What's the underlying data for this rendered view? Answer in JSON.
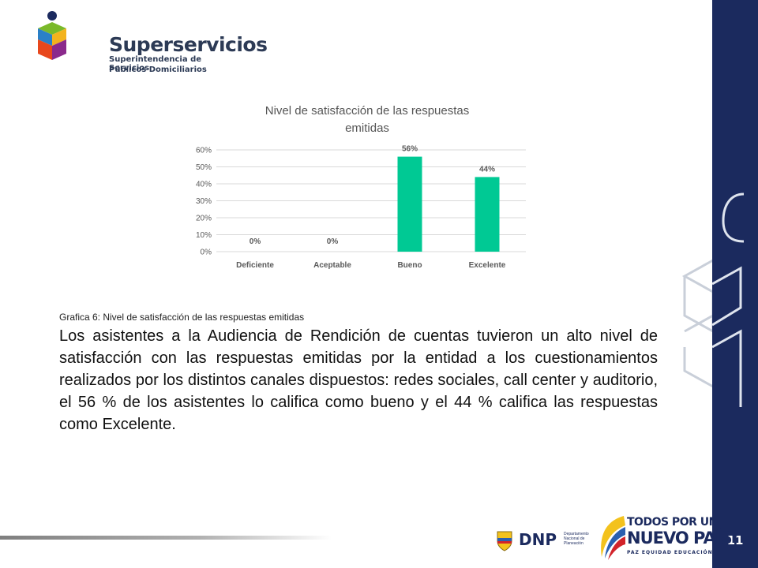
{
  "logo": {
    "name": "Superservicios",
    "subtitle_line1": "Superintendencia de Servicios",
    "subtitle_line2": "Públicos Domiciliarios"
  },
  "chart_data": {
    "type": "bar",
    "title": "Nivel de satisfacción de las respuestas emitidas",
    "title_line1": "Nivel de satisfacción de las respuestas",
    "title_line2": "emitidas",
    "categories": [
      "Deficiente",
      "Aceptable",
      "Bueno",
      "Excelente"
    ],
    "values": [
      0,
      0,
      56,
      44
    ],
    "data_labels": [
      "0%",
      "0%",
      "56%",
      "44%"
    ],
    "yticks": [
      "0%",
      "10%",
      "20%",
      "30%",
      "40%",
      "50%",
      "60%"
    ],
    "ytick_values": [
      0,
      10,
      20,
      30,
      40,
      50,
      60
    ],
    "ylim": [
      0,
      60
    ],
    "grid": true,
    "bar_color": "#00c994",
    "xlabel": "",
    "ylabel": ""
  },
  "caption": "Grafica 6: Nivel de satisfacción de las respuestas emitidas",
  "body": "Los asistentes a la Audiencia de Rendición de cuentas tuvieron un alto nivel de satisfacción con las respuestas emitidas por la entidad a los cuestionamientos realizados por los distintos canales dispuestos: redes sociales, call center y auditorio, el 56 % de los asistentes lo califica como bueno y el 44 % califica las respuestas como Excelente.",
  "page_number": "11",
  "footer": {
    "dnp": "DNP",
    "dnp_small": "Departamento Nacional de Planeación",
    "tpun_line1": "TODOS POR UN",
    "tpun_line2": "NUEVO PAÍS",
    "tpun_line3": "PAZ  EQUIDAD  EDUCACIÓN"
  },
  "colors": {
    "sidebar": "#1b2a5e",
    "accent_green": "#00c994"
  }
}
